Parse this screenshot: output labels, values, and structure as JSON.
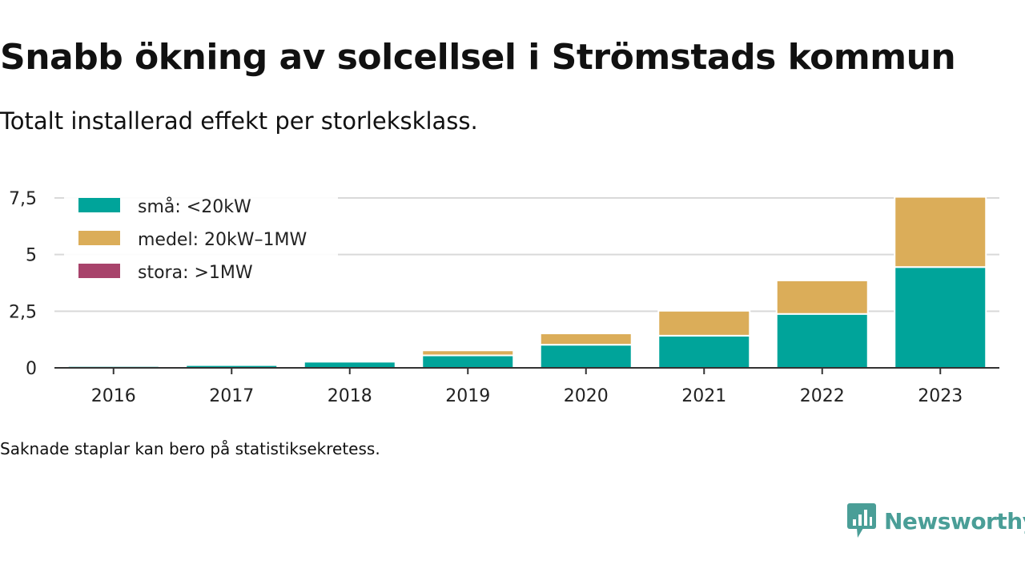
{
  "title": "Snabb ökning av solcellsel i Strömstads kommun",
  "subtitle": "Totalt installerad effekt per storleksklass.",
  "note": "Saknade staplar kan bero på statistiksekretess.",
  "brand": {
    "name": "Newsworthy",
    "color": "#4a9e97",
    "icon": "newsworthy-logo-icon"
  },
  "chart_data": {
    "type": "bar",
    "stacked": true,
    "categories": [
      "2016",
      "2017",
      "2018",
      "2019",
      "2020",
      "2021",
      "2022",
      "2023"
    ],
    "series": [
      {
        "name": "små: <20kW",
        "color": "#00a49a",
        "values": [
          0.08,
          0.12,
          0.27,
          0.55,
          1.02,
          1.42,
          2.38,
          4.45
        ]
      },
      {
        "name": "medel: 20kW–1MW",
        "color": "#dbad59",
        "values": [
          0,
          0,
          0,
          0.22,
          0.5,
          1.1,
          1.48,
          3.1
        ]
      },
      {
        "name": "stora: >1MW",
        "color": "#a8436b",
        "values": [
          0,
          0,
          0,
          0,
          0,
          0,
          0,
          0
        ]
      }
    ],
    "y_ticks": [
      {
        "value": 0,
        "label": "0"
      },
      {
        "value": 2.5,
        "label": "2,5"
      },
      {
        "value": 5,
        "label": "5"
      },
      {
        "value": 7.5,
        "label": "7,5"
      }
    ],
    "ylim": [
      0,
      7.5
    ],
    "grid": true,
    "legend_position": "top-left"
  }
}
